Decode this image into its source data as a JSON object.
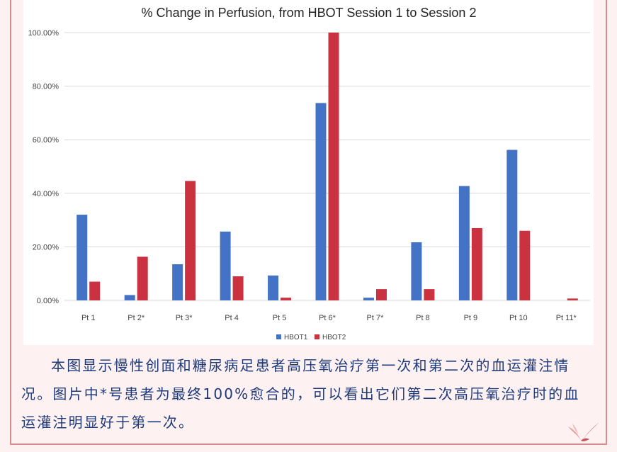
{
  "chart_data": {
    "type": "bar",
    "title": "% Change in Perfusion, from HBOT Session 1 to Session 2",
    "xlabel": "",
    "ylabel": "",
    "categories": [
      "Pt 1",
      "Pt 2*",
      "Pt 3*",
      "Pt 4",
      "Pt 5",
      "Pt 6*",
      "Pt 7*",
      "Pt 8",
      "Pt 9",
      "Pt 10",
      "Pt 11*"
    ],
    "series": [
      {
        "name": "HBOT1",
        "color": "#4472c4",
        "values": [
          32.0,
          2.0,
          13.5,
          25.7,
          9.3,
          73.7,
          1.0,
          21.7,
          42.7,
          56.2,
          0.0
        ]
      },
      {
        "name": "HBOT2",
        "color": "#c9323e",
        "values": [
          7.0,
          16.3,
          44.6,
          9.0,
          1.0,
          100.0,
          4.2,
          4.2,
          27.0,
          26.0,
          0.7
        ]
      }
    ],
    "ylim": [
      0,
      100
    ],
    "yticks": [
      0,
      20,
      40,
      60,
      80,
      100
    ],
    "ytick_labels": [
      "0.00%",
      "20.00%",
      "40.00%",
      "60.00%",
      "80.00%",
      "100.00%"
    ],
    "grid": true,
    "legend_position": "bottom"
  },
  "caption": "本图显示慢性创面和糖尿病足患者高压氧治疗第一次和第二次的血运灌注情况。图片中*号患者为最终100%愈合的，可以看出它们第二次高压氧治疗时的血运灌注明显好于第一次。",
  "colors": {
    "frame": "#d98c8c",
    "caption_text": "#1f3a7a",
    "background": "#fdf1f1"
  },
  "decor": {
    "corner_icon": "bird-icon"
  }
}
